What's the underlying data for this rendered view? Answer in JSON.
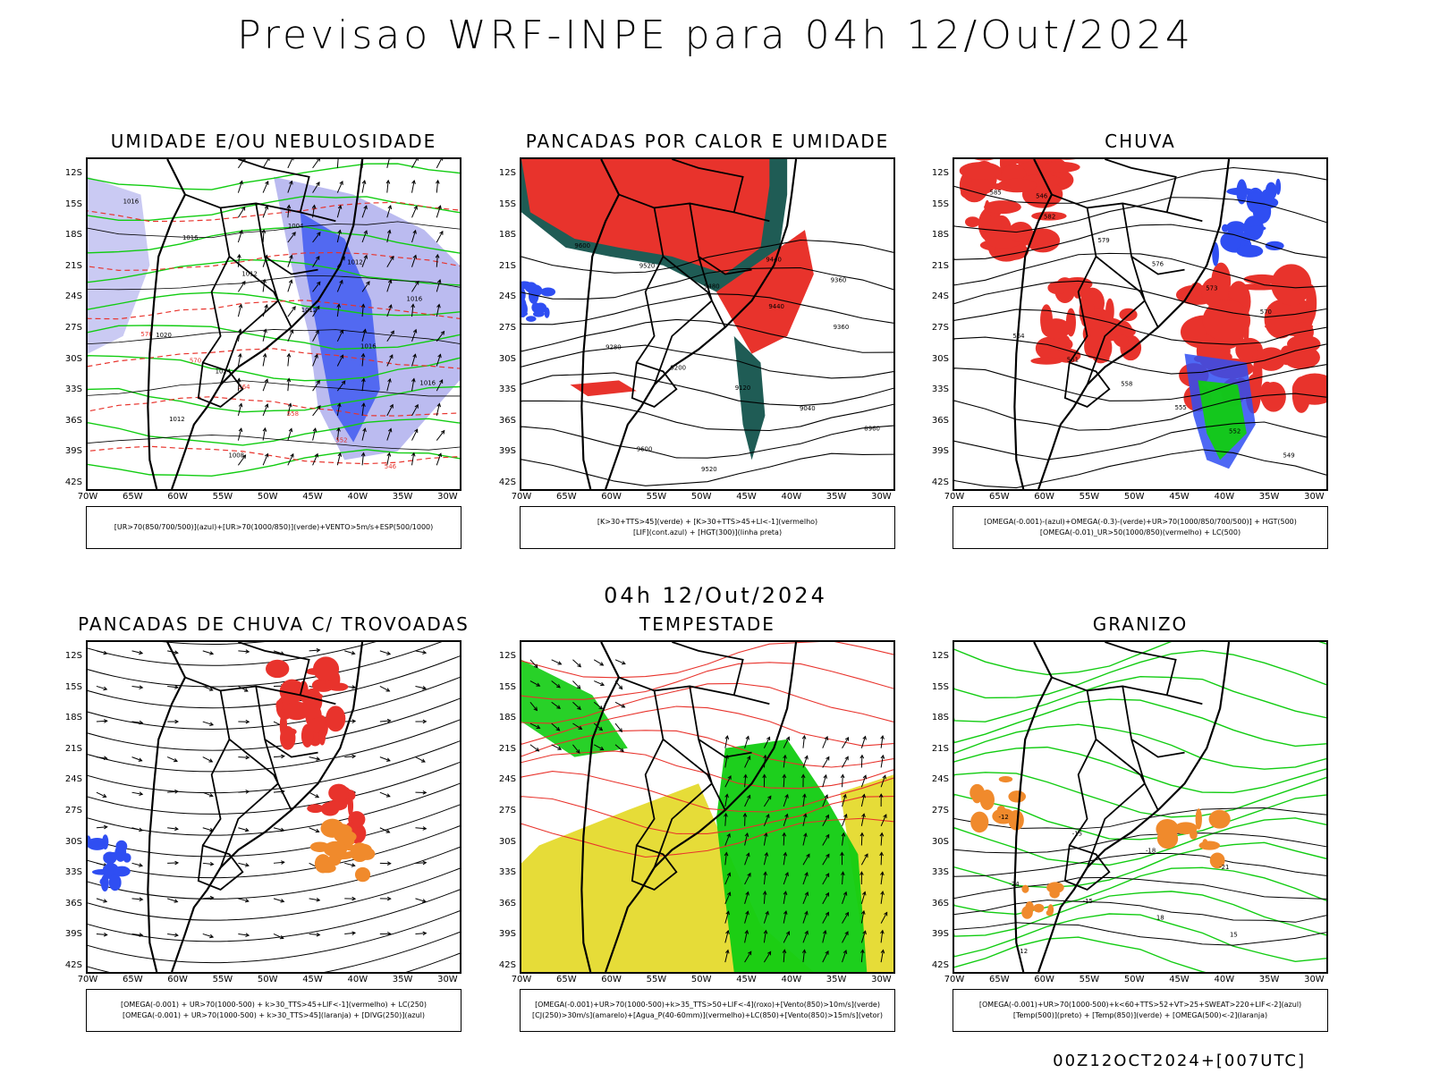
{
  "title": "Previsao WRF-INPE  para 04h 12/Out/2024",
  "mid_time": "04h 12/Out/2024",
  "footer": "00Z12OCT2024+[007UTC]",
  "lat_ticks": [
    "12S",
    "15S",
    "18S",
    "21S",
    "24S",
    "27S",
    "30S",
    "33S",
    "36S",
    "39S",
    "42S"
  ],
  "lon_ticks": [
    "70W",
    "65W",
    "60W",
    "55W",
    "50W",
    "45W",
    "40W",
    "35W",
    "30W"
  ],
  "colors": {
    "red": "#e8332c",
    "green": "#11cc11",
    "blue": "#2f4ef2",
    "lavender": "#b4b4ee",
    "dark_teal": "#1f5c55",
    "yellow": "#e6dc38",
    "orange": "#f08a2c",
    "black": "#000000"
  },
  "panels": [
    {
      "id": "umidade",
      "title": "UMIDADE E/OU NEBULOSIDADE",
      "legend": [
        "[UR>70(850/700/500)](azul)+[UR>70(1000/850)](verde)+VENTO>5m/s+ESP(500/1000)"
      ],
      "contour_labels": [
        "1016",
        "1016",
        "1012",
        "1012",
        "1016",
        "1016",
        "1012",
        "1008",
        "1004",
        "1012",
        "1016",
        "1020",
        "1024",
        "576",
        "570",
        "564",
        "558",
        "552",
        "546"
      ]
    },
    {
      "id": "pancadas-calor",
      "title": "PANCADAS POR CALOR E UMIDADE",
      "legend": [
        "[K>30+TTS>45](verde) + [K>30+TTS>45+LI<-1](vermelho)",
        "[LIF](cont.azul) + [HGT(300)](linha preta)"
      ],
      "contour_labels": [
        "9600",
        "9520",
        "9480",
        "9440",
        "9360",
        "9280",
        "9200",
        "9120",
        "9040",
        "8960",
        "9600",
        "9520",
        "9440",
        "9360"
      ]
    },
    {
      "id": "chuva",
      "title": "CHUVA",
      "legend": [
        "[OMEGA(-0.001)-(azul)+OMEGA(-0.3)-(verde)+UR>70(1000/850/700/500)] + HGT(500)",
        "[OMEGA(-0.01)_UR>50(1000/850)(vermelho) + LC(500)"
      ],
      "contour_labels": [
        "585",
        "582",
        "579",
        "576",
        "573",
        "570",
        "564",
        "561",
        "558",
        "555",
        "552",
        "549",
        "546"
      ]
    },
    {
      "id": "trovoadas",
      "title": "PANCADAS DE CHUVA C/ TROVOADAS",
      "legend": [
        "[OMEGA(-0.001) + UR>70(1000-500) + k>30_TTS>45+LIF<-1](vermelho) + LC(250)",
        "[OMEGA(-0.001) + UR>70(1000-500) + k>30_TTS>45](laranja) + [DIVG(250)](azul)"
      ],
      "contour_labels": []
    },
    {
      "id": "tempestade",
      "title": "TEMPESTADE",
      "legend": [
        "[OMEGA(-0.001)+UR>70(1000-500)+k>35_TTS>50+LIF<-4](roxo)+[Vento(850)>10m/s](verde)",
        "[CJ(250)>30m/s](amarelo)+[Agua_P(40-60mm)](vermelho)+LC(850)+[Vento(850)>15m/s](vetor)"
      ],
      "contour_labels": []
    },
    {
      "id": "granizo",
      "title": "GRANIZO",
      "legend": [
        "[OMEGA(-0.001)+UR>70(1000-500)+k<60+TTS>52+VT>25+SWEAT>220+LIF<-2](azul)",
        "[Temp(500)](preto) + [Temp(850)](verde) + [OMEGA(500)<-2](laranja)"
      ],
      "contour_labels": [
        "-12",
        "-15",
        "-18",
        "-21",
        "-24",
        "-15",
        "18",
        "15",
        "12"
      ]
    }
  ]
}
